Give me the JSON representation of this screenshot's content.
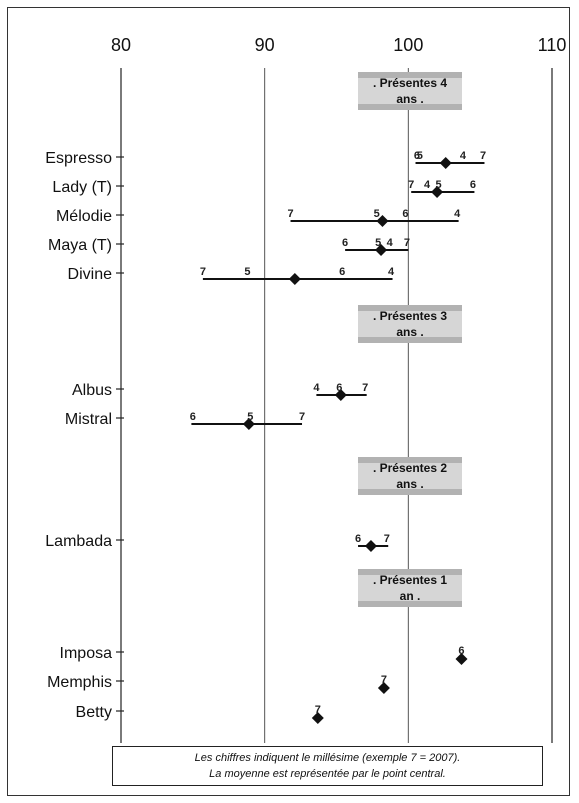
{
  "chart_data": {
    "type": "interval",
    "x_ticks": [
      "80",
      "90",
      "100",
      "110"
    ],
    "xlim": [
      80,
      110
    ],
    "gridlines": "vertical",
    "note": [
      "Les chiffres indiquent le millésime (exemple 7 = 2007).",
      "La moyenne est représentée par le point central."
    ],
    "groups": [
      {
        "label_lines": [
          ". Présentes 4",
          "ans ."
        ],
        "items": [
          {
            "name": "Espresso",
            "min": 100.5,
            "max": 105.3,
            "mean": 102.6,
            "years": [
              {
                "label": "6",
                "value": 100.6
              },
              {
                "label": "5",
                "value": 100.8
              },
              {
                "label": "4",
                "value": 103.8
              },
              {
                "label": "7",
                "value": 105.2
              }
            ]
          },
          {
            "name": "Lady (T)",
            "min": 100.2,
            "max": 104.6,
            "mean": 102.0,
            "years": [
              {
                "label": "7",
                "value": 100.2
              },
              {
                "label": "4",
                "value": 101.3
              },
              {
                "label": "5",
                "value": 102.1
              },
              {
                "label": "6",
                "value": 104.5
              }
            ]
          },
          {
            "name": "Mélodie",
            "min": 91.8,
            "max": 103.5,
            "mean": 98.2,
            "years": [
              {
                "label": "7",
                "value": 91.8
              },
              {
                "label": "5",
                "value": 97.8
              },
              {
                "label": "6",
                "value": 99.8
              },
              {
                "label": "4",
                "value": 103.4
              }
            ]
          },
          {
            "name": "Maya (T)",
            "min": 95.6,
            "max": 100.0,
            "mean": 98.1,
            "years": [
              {
                "label": "6",
                "value": 95.6
              },
              {
                "label": "5",
                "value": 97.9
              },
              {
                "label": "4",
                "value": 98.7
              },
              {
                "label": "7",
                "value": 99.9
              }
            ]
          },
          {
            "name": "Divine",
            "min": 85.7,
            "max": 98.9,
            "mean": 92.1,
            "years": [
              {
                "label": "7",
                "value": 85.7
              },
              {
                "label": "5",
                "value": 88.8
              },
              {
                "label": "6",
                "value": 95.4
              },
              {
                "label": "4",
                "value": 98.8
              }
            ]
          }
        ]
      },
      {
        "label_lines": [
          ". Présentes 3",
          "ans ."
        ],
        "items": [
          {
            "name": "Albus",
            "min": 93.6,
            "max": 97.1,
            "mean": 95.3,
            "years": [
              {
                "label": "4",
                "value": 93.6
              },
              {
                "label": "6",
                "value": 95.2
              },
              {
                "label": "7",
                "value": 97.0
              }
            ]
          },
          {
            "name": "Mistral",
            "min": 84.9,
            "max": 92.6,
            "mean": 88.9,
            "years": [
              {
                "label": "6",
                "value": 85.0
              },
              {
                "label": "5",
                "value": 89.0
              },
              {
                "label": "7",
                "value": 92.6
              }
            ]
          }
        ]
      },
      {
        "label_lines": [
          ". Présentes 2",
          "ans ."
        ],
        "items": [
          {
            "name": "Lambada",
            "min": 96.5,
            "max": 98.6,
            "mean": 97.4,
            "years": [
              {
                "label": "6",
                "value": 96.5
              },
              {
                "label": "7",
                "value": 98.5
              }
            ]
          }
        ]
      },
      {
        "label_lines": [
          ". Présentes 1",
          "an ."
        ],
        "items": [
          {
            "name": "Imposa",
            "min": null,
            "max": null,
            "mean": 103.7,
            "years": [
              {
                "label": "6",
                "value": 103.7
              }
            ]
          },
          {
            "name": "Memphis",
            "min": null,
            "max": null,
            "mean": 98.3,
            "years": [
              {
                "label": "7",
                "value": 98.3
              }
            ]
          },
          {
            "name": "Betty",
            "min": null,
            "max": null,
            "mean": 93.7,
            "years": [
              {
                "label": "7",
                "value": 93.7
              }
            ]
          }
        ]
      }
    ]
  }
}
